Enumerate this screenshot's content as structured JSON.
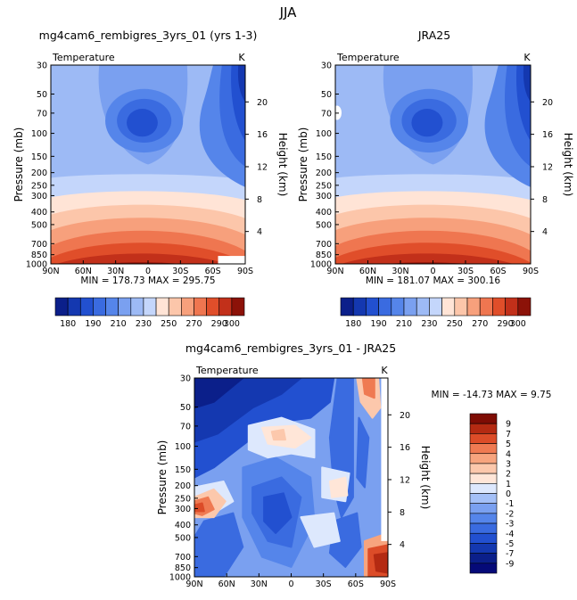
{
  "page_title": "JJA",
  "panels": [
    {
      "id": "model",
      "title": "mg4cam6_rembigres_3yrs_01 (yrs 1-3)",
      "variable": "Temperature",
      "units": "K",
      "stats_text": "MIN = 178.73  MAX = 295.75",
      "ylabel": "Pressure (mb)",
      "y2label": "Height (km)"
    },
    {
      "id": "obs",
      "title": "JRA25",
      "variable": "Temperature",
      "units": "K",
      "stats_text": "MIN = 181.07  MAX = 300.16",
      "ylabel": "Pressure (mb)",
      "y2label": "Height (km)"
    },
    {
      "id": "diff",
      "title": "mg4cam6_rembigres_3yrs_01 - JRA25",
      "variable": "Temperature",
      "units": "K",
      "stats_text": "MIN = -14.73  MAX =    9.75",
      "ylabel": "Pressure (mb)",
      "y2label": "Height (km)"
    }
  ],
  "chart_data": [
    {
      "type": "heatmap",
      "subtype": "filled-contour",
      "title": "mg4cam6_rembigres_3yrs_01 (yrs 1-3)",
      "min": 178.73,
      "max": 295.75,
      "x_ticks": [
        "90N",
        "60N",
        "30N",
        "0",
        "30S",
        "60S",
        "90S"
      ],
      "x_values": [
        90,
        60,
        30,
        0,
        -30,
        -60,
        -90
      ],
      "pressure_ticks": [
        "30",
        "50",
        "70",
        "100",
        "150",
        "200",
        "250",
        "300",
        "400",
        "500",
        "700",
        "850",
        "1000"
      ],
      "height_ticks": [
        "4",
        "8",
        "12",
        "16",
        "20"
      ],
      "colorbar_labels": [
        "180",
        "190",
        "210",
        "230",
        "250",
        "270",
        "290",
        "300"
      ],
      "levels": [
        180,
        185,
        190,
        200,
        210,
        220,
        230,
        240,
        250,
        260,
        270,
        280,
        290,
        300
      ],
      "ylim": [
        1000,
        30
      ],
      "y_scale": "log"
    },
    {
      "type": "heatmap",
      "subtype": "filled-contour",
      "title": "JRA25",
      "min": 181.07,
      "max": 300.16,
      "x_ticks": [
        "90N",
        "60N",
        "30N",
        "0",
        "30S",
        "60S",
        "90S"
      ],
      "x_values": [
        90,
        60,
        30,
        0,
        -30,
        -60,
        -90
      ],
      "pressure_ticks": [
        "30",
        "50",
        "70",
        "100",
        "150",
        "200",
        "250",
        "300",
        "400",
        "500",
        "700",
        "850",
        "1000"
      ],
      "height_ticks": [
        "4",
        "8",
        "12",
        "16",
        "20"
      ],
      "colorbar_labels": [
        "180",
        "190",
        "210",
        "230",
        "250",
        "270",
        "290",
        "300"
      ],
      "levels": [
        180,
        185,
        190,
        200,
        210,
        220,
        230,
        240,
        250,
        260,
        270,
        280,
        290,
        300
      ],
      "ylim": [
        1000,
        30
      ],
      "y_scale": "log"
    },
    {
      "type": "heatmap",
      "subtype": "filled-contour",
      "title": "mg4cam6_rembigres_3yrs_01 - JRA25",
      "min": -14.73,
      "max": 9.75,
      "x_ticks": [
        "90N",
        "60N",
        "30N",
        "0",
        "30S",
        "60S",
        "90S"
      ],
      "x_values": [
        90,
        60,
        30,
        0,
        -30,
        -60,
        -90
      ],
      "pressure_ticks": [
        "30",
        "50",
        "70",
        "100",
        "150",
        "200",
        "250",
        "300",
        "400",
        "500",
        "700",
        "850",
        "1000"
      ],
      "height_ticks": [
        "4",
        "8",
        "12",
        "16",
        "20"
      ],
      "colorbar_labels": [
        "9",
        "7",
        "5",
        "4",
        "3",
        "2",
        "1",
        "0",
        "-1",
        "-2",
        "-3",
        "-4",
        "-5",
        "-7",
        "-9"
      ],
      "levels": [
        -9,
        -7,
        -5,
        -4,
        -3,
        -2,
        -1,
        0,
        1,
        2,
        3,
        4,
        5,
        7,
        9
      ],
      "ylim": [
        1000,
        30
      ],
      "y_scale": "log"
    }
  ],
  "colors": {
    "temperature_scale": [
      "#0b1f8a",
      "#1438b0",
      "#2250d0",
      "#3a6be0",
      "#5585ea",
      "#7aa0f0",
      "#9dbaf5",
      "#c4d6fb",
      "#ffe4d6",
      "#fcc6aa",
      "#f7a07c",
      "#ef7650",
      "#e04e2a",
      "#c2301a",
      "#8c1208"
    ],
    "difference_scale": [
      "#050a78",
      "#0b1f8a",
      "#1438b0",
      "#2250d0",
      "#3a6be0",
      "#5585ea",
      "#7aa0f0",
      "#a4c0f7",
      "#dde8fd",
      "#ffe6d8",
      "#fcc8ac",
      "#f7a47e",
      "#ef7a52",
      "#dc4c28",
      "#b42a12",
      "#7e0c04"
    ]
  }
}
